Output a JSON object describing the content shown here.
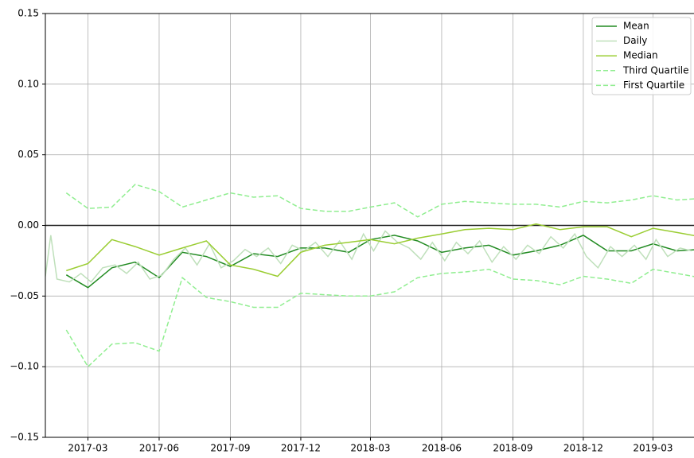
{
  "chart_data": {
    "type": "line",
    "x": [
      "2017-02",
      "2017-03",
      "2017-04",
      "2017-05",
      "2017-06",
      "2017-07",
      "2017-08",
      "2017-09",
      "2017-10",
      "2017-11",
      "2017-12",
      "2018-01",
      "2018-02",
      "2018-03",
      "2018-04",
      "2018-05",
      "2018-06",
      "2018-07",
      "2018-08",
      "2018-09",
      "2018-10",
      "2018-11",
      "2018-12",
      "2019-01",
      "2019-02",
      "2019-03",
      "2019-04",
      "2019-05"
    ],
    "xlim": [
      "2017-01-05",
      "2019-04-23"
    ],
    "xticks": [
      "2017-03",
      "2017-06",
      "2017-09",
      "2017-12",
      "2018-03",
      "2018-06",
      "2018-09",
      "2018-12",
      "2019-03"
    ],
    "ylim": [
      -0.15,
      0.15
    ],
    "yticks": [
      {
        "value": -0.15,
        "label": "−0.15"
      },
      {
        "value": -0.1,
        "label": "−0.10"
      },
      {
        "value": -0.05,
        "label": "−0.05"
      },
      {
        "value": 0,
        "label": "0.00"
      },
      0.05,
      {
        "value": 0.1,
        "label": "0.10"
      },
      0.15
    ],
    "grid": true,
    "reference_line": 0,
    "legend": "upper right",
    "series": [
      {
        "name": "Mean",
        "color": "#228b22",
        "dash": false,
        "values": [
          -0.035,
          -0.044,
          -0.03,
          -0.026,
          -0.037,
          -0.019,
          -0.022,
          -0.029,
          -0.02,
          -0.022,
          -0.016,
          -0.016,
          -0.019,
          -0.01,
          -0.007,
          -0.011,
          -0.019,
          -0.016,
          -0.014,
          -0.021,
          -0.018,
          -0.014,
          -0.007,
          -0.018,
          -0.018,
          -0.013,
          -0.018,
          -0.017
        ]
      },
      {
        "name": "Daily",
        "color": "#bfe0bb",
        "dash": false,
        "x": [
          "2017-01-05",
          "2017-01-12",
          "2017-01-20",
          "2017-02-05",
          "2017-02-20",
          "2017-03-05",
          "2017-03-20",
          "2017-04-05",
          "2017-04-20",
          "2017-05-05",
          "2017-05-20",
          "2017-06-05",
          "2017-06-20",
          "2017-07-05",
          "2017-07-20",
          "2017-08-05",
          "2017-08-20",
          "2017-09-05",
          "2017-09-20",
          "2017-10-05",
          "2017-10-20",
          "2017-11-05",
          "2017-11-20",
          "2017-12-05",
          "2017-12-20",
          "2018-01-05",
          "2018-01-20",
          "2018-02-05",
          "2018-02-20",
          "2018-03-05",
          "2018-03-20",
          "2018-04-05",
          "2018-04-20",
          "2018-05-05",
          "2018-05-20",
          "2018-06-05",
          "2018-06-20",
          "2018-07-05",
          "2018-07-20",
          "2018-08-05",
          "2018-08-20",
          "2018-09-05",
          "2018-09-20",
          "2018-10-05",
          "2018-10-20",
          "2018-11-05",
          "2018-11-20",
          "2018-12-05",
          "2018-12-20",
          "2019-01-05",
          "2019-01-20",
          "2019-02-05",
          "2019-02-20",
          "2019-03-05",
          "2019-03-20",
          "2019-04-05",
          "2019-04-20"
        ],
        "values": [
          -0.036,
          -0.007,
          -0.038,
          -0.04,
          -0.034,
          -0.04,
          -0.03,
          -0.028,
          -0.034,
          -0.026,
          -0.038,
          -0.035,
          -0.024,
          -0.016,
          -0.028,
          -0.013,
          -0.03,
          -0.025,
          -0.017,
          -0.022,
          -0.016,
          -0.027,
          -0.014,
          -0.018,
          -0.012,
          -0.022,
          -0.011,
          -0.024,
          -0.006,
          -0.018,
          -0.004,
          -0.012,
          -0.016,
          -0.024,
          -0.012,
          -0.025,
          -0.012,
          -0.02,
          -0.011,
          -0.026,
          -0.015,
          -0.024,
          -0.014,
          -0.02,
          -0.008,
          -0.016,
          -0.006,
          -0.022,
          -0.03,
          -0.015,
          -0.022,
          -0.014,
          -0.024,
          -0.01,
          -0.022,
          -0.016,
          -0.018
        ]
      },
      {
        "name": "Median",
        "color": "#9acd32",
        "dash": false,
        "values": [
          -0.032,
          -0.027,
          -0.01,
          -0.015,
          -0.021,
          -0.016,
          -0.011,
          -0.028,
          -0.031,
          -0.036,
          -0.019,
          -0.014,
          -0.012,
          -0.01,
          -0.013,
          -0.009,
          -0.006,
          -0.003,
          -0.002,
          -0.003,
          0.001,
          -0.003,
          -0.001,
          -0.001,
          -0.008,
          -0.002,
          -0.005,
          -0.008
        ]
      },
      {
        "name": "Third Quartile",
        "color": "#90ee90",
        "dash": true,
        "values": [
          0.023,
          0.012,
          0.013,
          0.029,
          0.024,
          0.013,
          0.018,
          0.023,
          0.02,
          0.021,
          0.012,
          0.01,
          0.01,
          0.013,
          0.016,
          0.006,
          0.015,
          0.017,
          0.016,
          0.015,
          0.015,
          0.013,
          0.017,
          0.016,
          0.018,
          0.021,
          0.018,
          0.019
        ]
      },
      {
        "name": "First Quartile",
        "color": "#90ee90",
        "dash": true,
        "values": [
          -0.074,
          -0.1,
          -0.084,
          -0.083,
          -0.089,
          -0.037,
          -0.051,
          -0.054,
          -0.058,
          -0.058,
          -0.048,
          -0.049,
          -0.05,
          -0.05,
          -0.047,
          -0.037,
          -0.034,
          -0.033,
          -0.031,
          -0.038,
          -0.039,
          -0.042,
          -0.036,
          -0.038,
          -0.041,
          -0.031,
          -0.034,
          -0.037
        ]
      }
    ]
  }
}
